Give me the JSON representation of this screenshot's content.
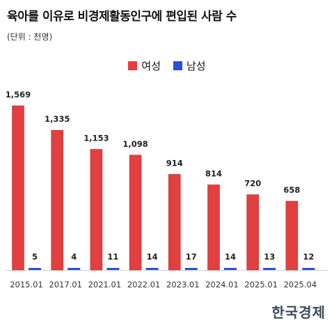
{
  "header": {
    "title": "육아를 이유로 비경제활동인구에 편입된 사람 수",
    "unit_note": "(단위 : 천명)"
  },
  "legend": [
    {
      "label": "여성",
      "color": "#e04040"
    },
    {
      "label": "남성",
      "color": "#2a4fd8"
    }
  ],
  "brand": {
    "logo_text": "한국경제"
  },
  "chart_data": {
    "type": "bar",
    "categories": [
      "2015.01",
      "2017.01",
      "2021.01",
      "2022.01",
      "2023.01",
      "2024.01",
      "2025.01",
      "2025.04"
    ],
    "series": [
      {
        "name": "여성",
        "color": "#e04040",
        "values": [
          1569,
          1335,
          1153,
          1098,
          914,
          814,
          720,
          658
        ],
        "labels": [
          "1,569",
          "1,335",
          "1,153",
          "1,098",
          "914",
          "814",
          "720",
          "658"
        ]
      },
      {
        "name": "남성",
        "color": "#2a4fd8",
        "values": [
          5,
          4,
          11,
          14,
          17,
          14,
          13,
          12
        ],
        "labels": [
          "5",
          "4",
          "11",
          "14",
          "17",
          "14",
          "13",
          "12"
        ]
      }
    ],
    "title": "육아를 이유로 비경제활동인구에 편입된 사람 수",
    "ylabel": "",
    "xlabel": "",
    "ylim": [
      0,
      1569
    ],
    "grid": false,
    "legend_position": "top-center"
  }
}
